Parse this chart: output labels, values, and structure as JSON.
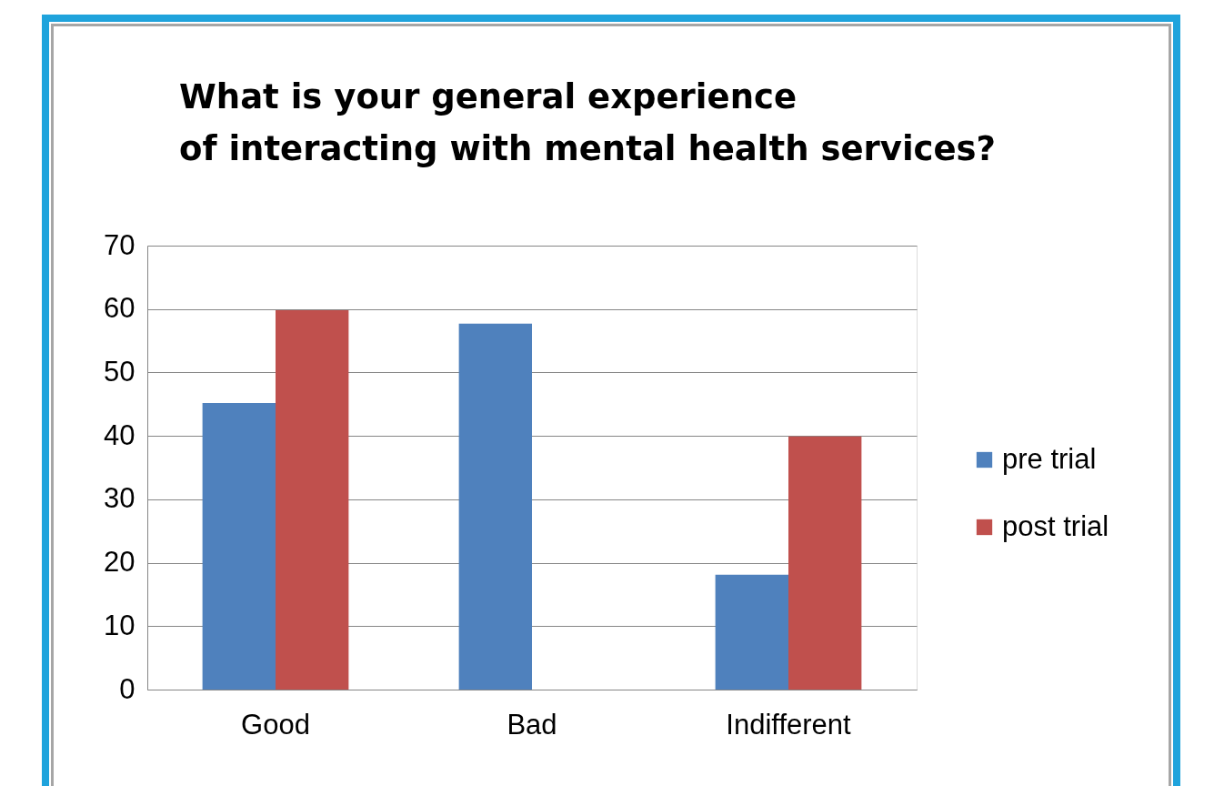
{
  "chart_data": {
    "type": "bar",
    "title": "What is your general experience of interacting with mental health services?",
    "categories": [
      "Good",
      "Bad",
      "Indifferent"
    ],
    "series": [
      {
        "name": "pre trial",
        "color": "#4f81bd",
        "values": [
          45.2,
          57.7,
          18.1
        ]
      },
      {
        "name": "post trial",
        "color": "#c0504d",
        "values": [
          59.8,
          null,
          39.9
        ]
      }
    ],
    "ylim": [
      0,
      70
    ],
    "yticks": [
      0,
      10,
      20,
      30,
      40,
      50,
      60,
      70
    ],
    "grid": "y",
    "legend": "right"
  }
}
